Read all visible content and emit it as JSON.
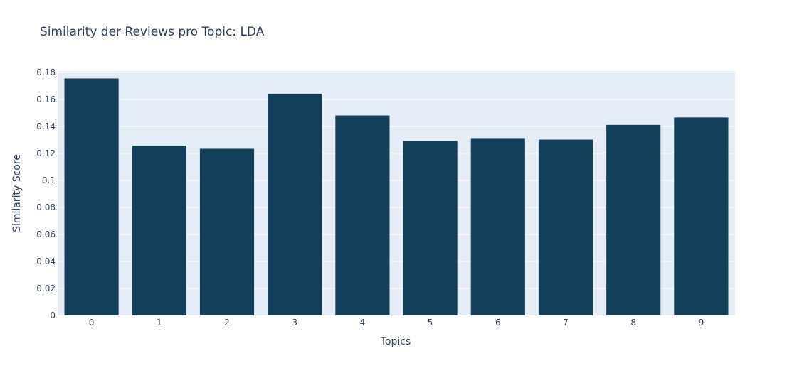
{
  "chart_data": {
    "type": "bar",
    "title": "Similarity der Reviews pro Topic: LDA",
    "xlabel": "Topics",
    "ylabel": "Similarity Score",
    "categories": [
      "0",
      "1",
      "2",
      "3",
      "4",
      "5",
      "6",
      "7",
      "8",
      "9"
    ],
    "values": [
      0.1755,
      0.1257,
      0.1234,
      0.1642,
      0.1481,
      0.1292,
      0.1313,
      0.1302,
      0.1411,
      0.1466
    ],
    "ylim": [
      0,
      0.181
    ],
    "yticks": [
      0,
      0.02,
      0.04,
      0.06,
      0.08,
      0.1,
      0.12,
      0.14,
      0.16,
      0.18
    ],
    "ytick_labels": [
      "0",
      "0.02",
      "0.04",
      "0.06",
      "0.08",
      "0.1",
      "0.12",
      "0.14",
      "0.16",
      "0.18"
    ],
    "grid": true,
    "legend": false,
    "bar_color": "#143f5a",
    "plot_background": "#e5ecf6",
    "text_color": "#2a3f5f"
  }
}
